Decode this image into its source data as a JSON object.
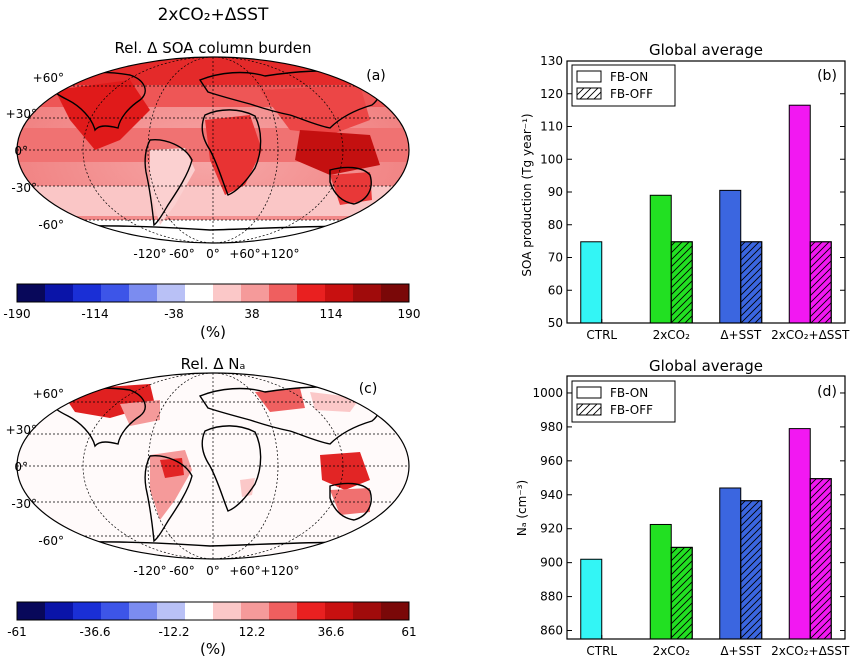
{
  "figure": {
    "suptitle": "2xCO₂+ΔSST"
  },
  "chart_data": [
    {
      "panel": "(a)",
      "type": "heatmap",
      "title": "Rel. Δ SOA column burden",
      "lat_labels": [
        "+60°",
        "+30°",
        "0°",
        "-30°",
        "-60°"
      ],
      "lon_labels": [
        "-120°",
        "-60°",
        "0°",
        "+60°",
        "+120°"
      ],
      "colorbar": {
        "ticks": [
          "-190",
          "-114",
          "-38",
          "38",
          "114",
          "190"
        ],
        "range": [
          -190,
          190
        ],
        "unit": "(%)",
        "colors": [
          "#08085a",
          "#0a14a8",
          "#1a2fd6",
          "#3d55e8",
          "#7b8cf0",
          "#b9c1f6",
          "#ffffff",
          "#fbc8c8",
          "#f59a9a",
          "#ef5f5f",
          "#e92020",
          "#c81010",
          "#a00b0b",
          "#7a0808"
        ]
      }
    },
    {
      "panel": "(b)",
      "type": "bar",
      "title": "Global average",
      "ylabel": "SOA production (Tg year⁻¹)",
      "ylim": [
        50,
        130
      ],
      "yticks": [
        "50",
        "60",
        "70",
        "80",
        "90",
        "100",
        "110",
        "120",
        "130"
      ],
      "categories": [
        "CTRL",
        "2xCO₂",
        "Δ+SST",
        "2xCO₂+ΔSST"
      ],
      "colors": [
        "#33f5f5",
        "#22e022",
        "#3b66e0",
        "#f218f2"
      ],
      "series": [
        {
          "name": "FB-ON",
          "values": [
            74.8,
            89.0,
            90.5,
            116.5
          ]
        },
        {
          "name": "FB-OFF",
          "values": [
            null,
            74.8,
            74.8,
            74.8
          ]
        }
      ],
      "legend": "top-left"
    },
    {
      "panel": "(c)",
      "type": "heatmap",
      "title": "Rel. Δ Nₐ",
      "lat_labels": [
        "+60°",
        "+30°",
        "0°",
        "-30°",
        "-60°"
      ],
      "lon_labels": [
        "-120°",
        "-60°",
        "0°",
        "+60°",
        "+120°"
      ],
      "colorbar": {
        "ticks": [
          "-61",
          "-36.6",
          "-12.2",
          "12.2",
          "36.6",
          "61"
        ],
        "range": [
          -61,
          61
        ],
        "unit": "(%)",
        "colors": [
          "#08085a",
          "#0a14a8",
          "#1a2fd6",
          "#3d55e8",
          "#7b8cf0",
          "#b9c1f6",
          "#ffffff",
          "#fbc8c8",
          "#f59a9a",
          "#ef5f5f",
          "#e92020",
          "#c81010",
          "#a00b0b",
          "#7a0808"
        ]
      }
    },
    {
      "panel": "(d)",
      "type": "bar",
      "title": "Global average",
      "ylabel": "Nₐ (cm⁻³)",
      "ylim": [
        855,
        1010
      ],
      "yticks": [
        "860",
        "880",
        "900",
        "920",
        "940",
        "960",
        "980",
        "1000"
      ],
      "categories": [
        "CTRL",
        "2xCO₂",
        "Δ+SST",
        "2xCO₂+ΔSST"
      ],
      "colors": [
        "#33f5f5",
        "#22e022",
        "#3b66e0",
        "#f218f2"
      ],
      "series": [
        {
          "name": "FB-ON",
          "values": [
            902,
            922.5,
            944,
            979
          ]
        },
        {
          "name": "FB-OFF",
          "values": [
            null,
            909,
            936.5,
            949.5
          ]
        }
      ],
      "legend": "top-left"
    }
  ]
}
